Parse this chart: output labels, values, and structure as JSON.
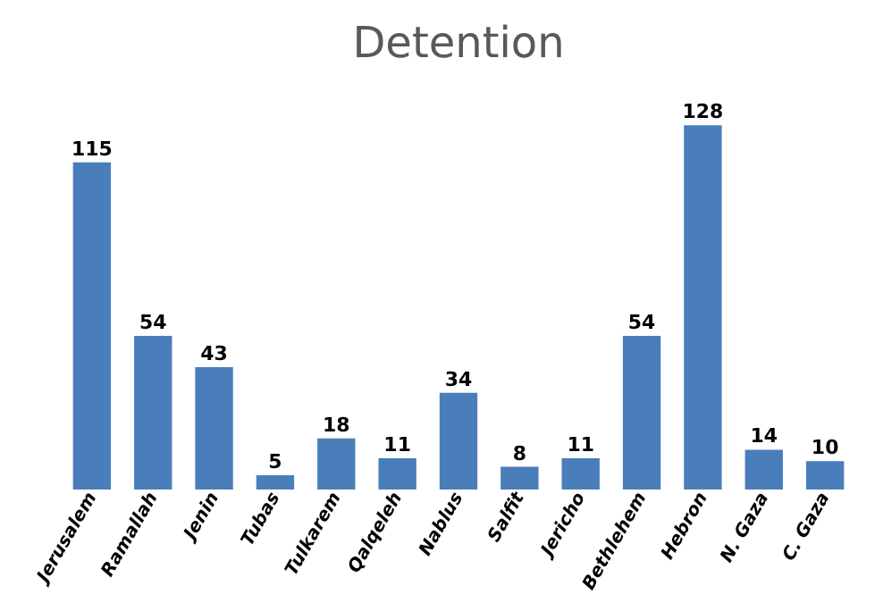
{
  "chart_data": {
    "type": "bar",
    "title": "Detention",
    "categories": [
      "Jerusalem",
      "Ramallah",
      "Jenin",
      "Tubas",
      "Tulkarem",
      "Qalqeleh",
      "Nablus",
      "Salfit",
      "Jericho",
      "Bethlehem",
      "Hebron",
      "N. Gaza",
      "C. Gaza"
    ],
    "values": [
      115,
      54,
      43,
      5,
      18,
      11,
      34,
      8,
      11,
      54,
      128,
      14,
      10
    ],
    "color": "#4a7ebb",
    "data_labels": true
  }
}
